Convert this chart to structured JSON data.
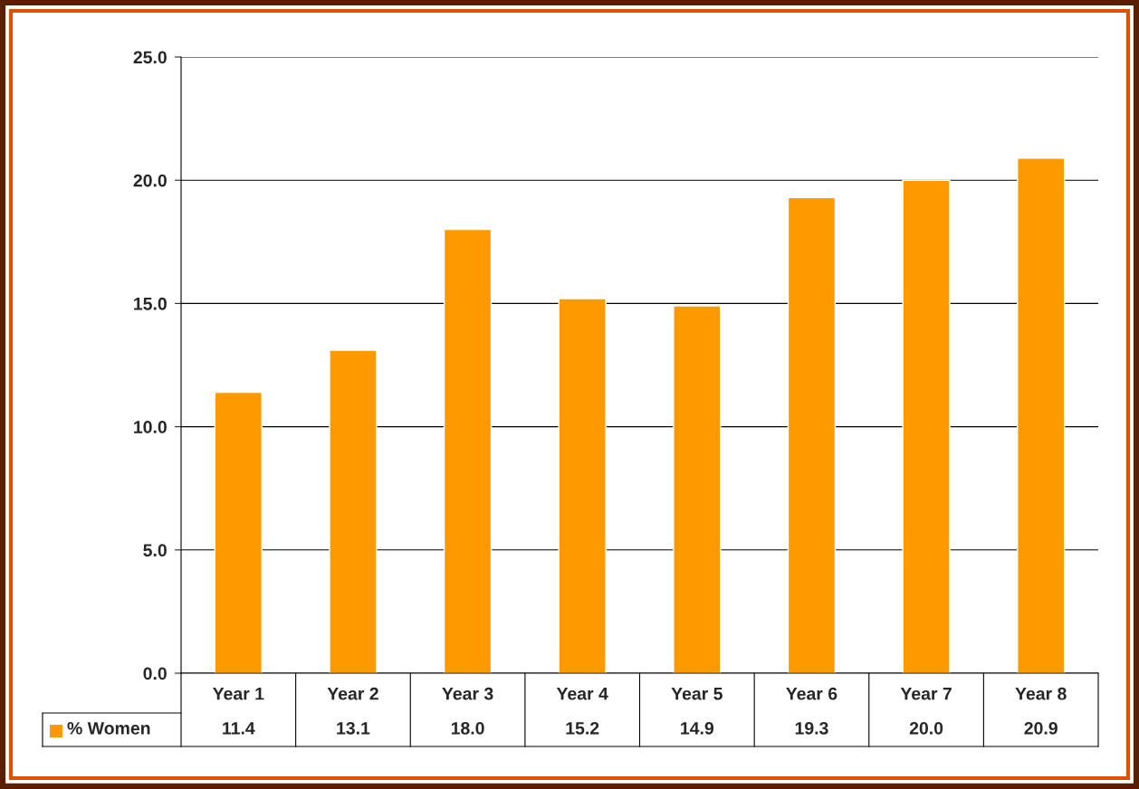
{
  "chart_data": {
    "type": "bar",
    "categories": [
      "Year 1",
      "Year 2",
      "Year 3",
      "Year 4",
      "Year 5",
      "Year 6",
      "Year 7",
      "Year 8"
    ],
    "series": [
      {
        "name": "% Women",
        "color": "#ff9900",
        "values": [
          11.4,
          13.1,
          18.0,
          15.2,
          14.9,
          19.3,
          20.0,
          20.9
        ]
      }
    ],
    "value_labels": [
      "11.4",
      "13.1",
      "18.0",
      "15.2",
      "14.9",
      "19.3",
      "20.0",
      "20.9"
    ],
    "ylim": [
      0,
      25
    ],
    "yticks": [
      {
        "value": 0,
        "label": "0.0"
      },
      {
        "value": 5,
        "label": "5.0"
      },
      {
        "value": 10,
        "label": "10.0"
      },
      {
        "value": 15,
        "label": "15.0"
      },
      {
        "value": 20,
        "label": "20.0"
      },
      {
        "value": 25,
        "label": "25.0"
      }
    ],
    "grid": "y",
    "legend": "bottom left"
  }
}
